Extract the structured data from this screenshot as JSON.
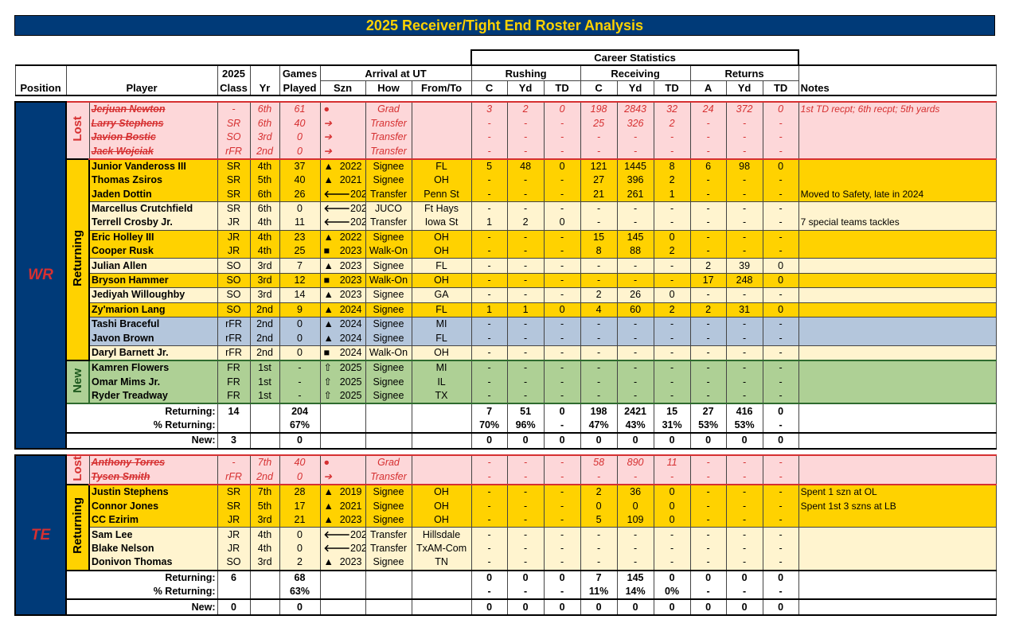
{
  "title": "2025 Receiver/Tight End Roster Analysis",
  "header": {
    "career_stats": "Career Statistics",
    "position": "Position",
    "player": "Player",
    "class_top": "2025",
    "class_bottom": "Class",
    "yr": "Yr",
    "games_top": "Games",
    "games_bottom": "Played",
    "arrival": "Arrival at UT",
    "szn": "Szn",
    "how": "How",
    "from_to": "From/To",
    "rushing": "Rushing",
    "receiving": "Receiving",
    "returns": "Returns",
    "stat_cols": [
      "C",
      "Yd",
      "TD",
      "C",
      "Yd",
      "TD",
      "A",
      "Yd",
      "TD"
    ],
    "notes": "Notes"
  },
  "colors": {
    "navy": "#003a78",
    "gold": "#ffd200",
    "lost": "#fdd7d9",
    "lost_text": "#d63031",
    "light": "#fff4cf",
    "blue": "#b4c6dc",
    "green": "#aed095"
  },
  "icons": {
    "grad": "●",
    "transfer_out": "➔",
    "signee": "▲",
    "walk_on": "■",
    "transfer_in": "🡐",
    "new_signee": "⇧"
  },
  "sections": [
    {
      "position": "WR",
      "groups": [
        {
          "label": "Lost",
          "type": "lost",
          "rows": [
            {
              "name": "Jerjuan Newton",
              "cls": "-",
              "yr": "6th",
              "gp": "61",
              "icon": "grad",
              "szn": "",
              "how": "Grad",
              "from": "",
              "stats": [
                "3",
                "2",
                "0",
                "198",
                "2843",
                "32",
                "24",
                "372",
                "0"
              ],
              "note": "1st TD recpt; 6th recpt; 5th yards",
              "fill": "lost"
            },
            {
              "name": "Larry Stephens",
              "cls": "SR",
              "yr": "6th",
              "gp": "40",
              "icon": "transfer_out",
              "szn": "",
              "how": "Transfer",
              "from": "",
              "stats": [
                "-",
                "-",
                "-",
                "25",
                "326",
                "2",
                "-",
                "-",
                "-"
              ],
              "note": "",
              "fill": "lost"
            },
            {
              "name": "Javion Bostic",
              "cls": "SO",
              "yr": "3rd",
              "gp": "0",
              "icon": "transfer_out",
              "szn": "",
              "how": "Transfer",
              "from": "",
              "stats": [
                "-",
                "-",
                "-",
                "-",
                "-",
                "-",
                "-",
                "-",
                "-"
              ],
              "note": "",
              "fill": "lost"
            },
            {
              "name": "Jack Wojciak",
              "cls": "rFR",
              "yr": "2nd",
              "gp": "0",
              "icon": "transfer_out",
              "szn": "",
              "how": "Transfer",
              "from": "",
              "stats": [
                "-",
                "-",
                "-",
                "-",
                "-",
                "-",
                "-",
                "-",
                "-"
              ],
              "note": "",
              "fill": "lost"
            }
          ]
        },
        {
          "label": "Returning",
          "type": "returning",
          "rows": [
            {
              "name": "Junior Vandeross III",
              "cls": "SR",
              "yr": "4th",
              "gp": "37",
              "icon": "signee",
              "szn": "2022",
              "how": "Signee",
              "from": "FL",
              "stats": [
                "5",
                "48",
                "0",
                "121",
                "1445",
                "8",
                "6",
                "98",
                "0"
              ],
              "note": "",
              "fill": "gold"
            },
            {
              "name": "Thomas Zsiros",
              "cls": "SR",
              "yr": "5th",
              "gp": "40",
              "icon": "signee",
              "szn": "2021",
              "how": "Signee",
              "from": "OH",
              "stats": [
                "-",
                "-",
                "-",
                "27",
                "396",
                "2",
                "-",
                "-",
                "-"
              ],
              "note": "",
              "fill": "gold"
            },
            {
              "name": "Jaden Dottin",
              "cls": "SR",
              "yr": "6th",
              "gp": "26",
              "icon": "transfer_in",
              "szn": "2023",
              "how": "Transfer",
              "from": "Penn St",
              "stats": [
                "-",
                "-",
                "-",
                "21",
                "261",
                "1",
                "-",
                "-",
                "-"
              ],
              "note": "Moved to Safety, late in 2024",
              "fill": "gold"
            },
            {
              "name": "Marcellus Crutchfield",
              "cls": "SR",
              "yr": "6th",
              "gp": "0",
              "icon": "transfer_in",
              "szn": "2024",
              "how": "JUCO",
              "from": "Ft Hays",
              "stats": [
                "-",
                "-",
                "-",
                "-",
                "-",
                "-",
                "-",
                "-",
                "-"
              ],
              "note": "",
              "fill": "light"
            },
            {
              "name": "Terrell Crosby Jr.",
              "cls": "JR",
              "yr": "4th",
              "gp": "11",
              "icon": "transfer_in",
              "szn": "2024",
              "how": "Transfer",
              "from": "Iowa St",
              "stats": [
                "1",
                "2",
                "0",
                "-",
                "-",
                "-",
                "-",
                "-",
                "-"
              ],
              "note": "7 special teams tackles",
              "fill": "light"
            },
            {
              "name": "Eric Holley III",
              "cls": "JR",
              "yr": "4th",
              "gp": "23",
              "icon": "signee",
              "szn": "2022",
              "how": "Signee",
              "from": "OH",
              "stats": [
                "-",
                "-",
                "-",
                "15",
                "145",
                "0",
                "-",
                "-",
                "-"
              ],
              "note": "",
              "fill": "gold"
            },
            {
              "name": "Cooper Rusk",
              "cls": "JR",
              "yr": "4th",
              "gp": "25",
              "icon": "walk_on",
              "szn": "2023",
              "how": "Walk-On",
              "from": "OH",
              "stats": [
                "-",
                "-",
                "-",
                "8",
                "88",
                "2",
                "-",
                "-",
                "-"
              ],
              "note": "",
              "fill": "gold"
            },
            {
              "name": "Julian Allen",
              "cls": "SO",
              "yr": "3rd",
              "gp": "7",
              "icon": "signee",
              "szn": "2023",
              "how": "Signee",
              "from": "FL",
              "stats": [
                "-",
                "-",
                "-",
                "-",
                "-",
                "-",
                "2",
                "39",
                "0"
              ],
              "note": "",
              "fill": "light"
            },
            {
              "name": "Bryson Hammer",
              "cls": "SO",
              "yr": "3rd",
              "gp": "12",
              "icon": "walk_on",
              "szn": "2023",
              "how": "Walk-On",
              "from": "OH",
              "stats": [
                "-",
                "-",
                "-",
                "-",
                "-",
                "-",
                "17",
                "248",
                "0"
              ],
              "note": "",
              "fill": "gold"
            },
            {
              "name": "Jediyah Willoughby",
              "cls": "SO",
              "yr": "3rd",
              "gp": "14",
              "icon": "signee",
              "szn": "2023",
              "how": "Signee",
              "from": "GA",
              "stats": [
                "-",
                "-",
                "-",
                "2",
                "26",
                "0",
                "-",
                "-",
                "-"
              ],
              "note": "",
              "fill": "light"
            },
            {
              "name": "Zy'marion Lang",
              "cls": "SO",
              "yr": "2nd",
              "gp": "9",
              "icon": "signee",
              "szn": "2024",
              "how": "Signee",
              "from": "FL",
              "stats": [
                "1",
                "1",
                "0",
                "4",
                "60",
                "2",
                "2",
                "31",
                "0"
              ],
              "note": "",
              "fill": "gold"
            },
            {
              "name": "Tashi Braceful",
              "cls": "rFR",
              "yr": "2nd",
              "gp": "0",
              "icon": "signee",
              "szn": "2024",
              "how": "Signee",
              "from": "MI",
              "stats": [
                "-",
                "-",
                "-",
                "-",
                "-",
                "-",
                "-",
                "-",
                "-"
              ],
              "note": "",
              "fill": "blue"
            },
            {
              "name": "Javon Brown",
              "cls": "rFR",
              "yr": "2nd",
              "gp": "0",
              "icon": "signee",
              "szn": "2024",
              "how": "Signee",
              "from": "FL",
              "stats": [
                "-",
                "-",
                "-",
                "-",
                "-",
                "-",
                "-",
                "-",
                "-"
              ],
              "note": "",
              "fill": "blue"
            },
            {
              "name": "Daryl Barnett Jr.",
              "cls": "rFR",
              "yr": "2nd",
              "gp": "0",
              "icon": "walk_on",
              "szn": "2024",
              "how": "Walk-On",
              "from": "OH",
              "stats": [
                "-",
                "-",
                "-",
                "-",
                "-",
                "-",
                "-",
                "-",
                "-"
              ],
              "note": "",
              "fill": "light"
            }
          ]
        },
        {
          "label": "New",
          "type": "new",
          "rows": [
            {
              "name": "Kamren Flowers",
              "cls": "FR",
              "yr": "1st",
              "gp": "-",
              "icon": "new_signee",
              "szn": "2025",
              "how": "Signee",
              "from": "MI",
              "stats": [
                "-",
                "-",
                "-",
                "-",
                "-",
                "-",
                "-",
                "-",
                "-"
              ],
              "note": "",
              "fill": "green"
            },
            {
              "name": "Omar Mims Jr.",
              "cls": "FR",
              "yr": "1st",
              "gp": "-",
              "icon": "new_signee",
              "szn": "2025",
              "how": "Signee",
              "from": "IL",
              "stats": [
                "-",
                "-",
                "-",
                "-",
                "-",
                "-",
                "-",
                "-",
                "-"
              ],
              "note": "",
              "fill": "green"
            },
            {
              "name": "Ryder Treadway",
              "cls": "FR",
              "yr": "1st",
              "gp": "-",
              "icon": "new_signee",
              "szn": "2025",
              "how": "Signee",
              "from": "TX",
              "stats": [
                "-",
                "-",
                "-",
                "-",
                "-",
                "-",
                "-",
                "-",
                "-"
              ],
              "note": "",
              "fill": "green"
            }
          ]
        }
      ],
      "summary": [
        {
          "label": "Returning:",
          "cls": "14",
          "gp": "204",
          "stats": [
            "7",
            "51",
            "0",
            "198",
            "2421",
            "15",
            "27",
            "416",
            "0"
          ]
        },
        {
          "label": "% Returning:",
          "cls": "",
          "gp": "67%",
          "stats": [
            "70%",
            "96%",
            "-",
            "47%",
            "43%",
            "31%",
            "53%",
            "53%",
            "-"
          ]
        },
        {
          "label": "New:",
          "cls": "3",
          "gp": "0",
          "stats": [
            "0",
            "0",
            "0",
            "0",
            "0",
            "0",
            "0",
            "0",
            "0"
          ]
        }
      ]
    },
    {
      "position": "TE",
      "groups": [
        {
          "label": "Lost",
          "type": "lost",
          "rows": [
            {
              "name": "Anthony Torres",
              "cls": "-",
              "yr": "7th",
              "gp": "40",
              "icon": "grad",
              "szn": "",
              "how": "Grad",
              "from": "",
              "stats": [
                "-",
                "-",
                "-",
                "58",
                "890",
                "11",
                "-",
                "-",
                "-"
              ],
              "note": "",
              "fill": "lost"
            },
            {
              "name": "Tysen Smith",
              "cls": "rFR",
              "yr": "2nd",
              "gp": "0",
              "icon": "transfer_out",
              "szn": "",
              "how": "Transfer",
              "from": "",
              "stats": [
                "-",
                "-",
                "-",
                "-",
                "-",
                "-",
                "-",
                "-",
                "-"
              ],
              "note": "",
              "fill": "lost"
            }
          ]
        },
        {
          "label": "Returning",
          "type": "returning",
          "rows": [
            {
              "name": "Justin Stephens",
              "cls": "SR",
              "yr": "7th",
              "gp": "28",
              "icon": "signee",
              "szn": "2019",
              "how": "Signee",
              "from": "OH",
              "stats": [
                "-",
                "-",
                "-",
                "2",
                "36",
                "0",
                "-",
                "-",
                "-"
              ],
              "note": "Spent 1 szn at OL",
              "fill": "gold"
            },
            {
              "name": "Connor Jones",
              "cls": "SR",
              "yr": "5th",
              "gp": "17",
              "icon": "signee",
              "szn": "2021",
              "how": "Signee",
              "from": "OH",
              "stats": [
                "-",
                "-",
                "-",
                "0",
                "0",
                "0",
                "-",
                "-",
                "-"
              ],
              "note": "Spent 1st 3 szns at LB",
              "fill": "gold"
            },
            {
              "name": "CC Ezirim",
              "cls": "JR",
              "yr": "3rd",
              "gp": "21",
              "icon": "signee",
              "szn": "2023",
              "how": "Signee",
              "from": "OH",
              "stats": [
                "-",
                "-",
                "-",
                "5",
                "109",
                "0",
                "-",
                "-",
                "-"
              ],
              "note": "",
              "fill": "gold"
            },
            {
              "name": "Sam Lee",
              "cls": "JR",
              "yr": "4th",
              "gp": "0",
              "icon": "transfer_in",
              "szn": "2024",
              "how": "Transfer",
              "from": "Hillsdale",
              "stats": [
                "-",
                "-",
                "-",
                "-",
                "-",
                "-",
                "-",
                "-",
                "-"
              ],
              "note": "",
              "fill": "light"
            },
            {
              "name": "Blake Nelson",
              "cls": "JR",
              "yr": "4th",
              "gp": "0",
              "icon": "transfer_in",
              "szn": "2023",
              "how": "Transfer",
              "from": "TxAM-Com",
              "stats": [
                "-",
                "-",
                "-",
                "-",
                "-",
                "-",
                "-",
                "-",
                "-"
              ],
              "note": "",
              "fill": "light"
            },
            {
              "name": "Donivon Thomas",
              "cls": "SO",
              "yr": "3rd",
              "gp": "2",
              "icon": "signee",
              "szn": "2023",
              "how": "Signee",
              "from": "TN",
              "stats": [
                "-",
                "-",
                "-",
                "-",
                "-",
                "-",
                "-",
                "-",
                "-"
              ],
              "note": "",
              "fill": "light"
            }
          ]
        }
      ],
      "summary": [
        {
          "label": "Returning:",
          "cls": "6",
          "gp": "68",
          "stats": [
            "0",
            "0",
            "0",
            "7",
            "145",
            "0",
            "0",
            "0",
            "0"
          ]
        },
        {
          "label": "% Returning:",
          "cls": "",
          "gp": "63%",
          "stats": [
            "-",
            "-",
            "-",
            "11%",
            "14%",
            "0%",
            "-",
            "-",
            "-"
          ]
        },
        {
          "label": "New:",
          "cls": "0",
          "gp": "0",
          "stats": [
            "0",
            "0",
            "0",
            "0",
            "0",
            "0",
            "0",
            "0",
            "0"
          ]
        }
      ]
    }
  ]
}
